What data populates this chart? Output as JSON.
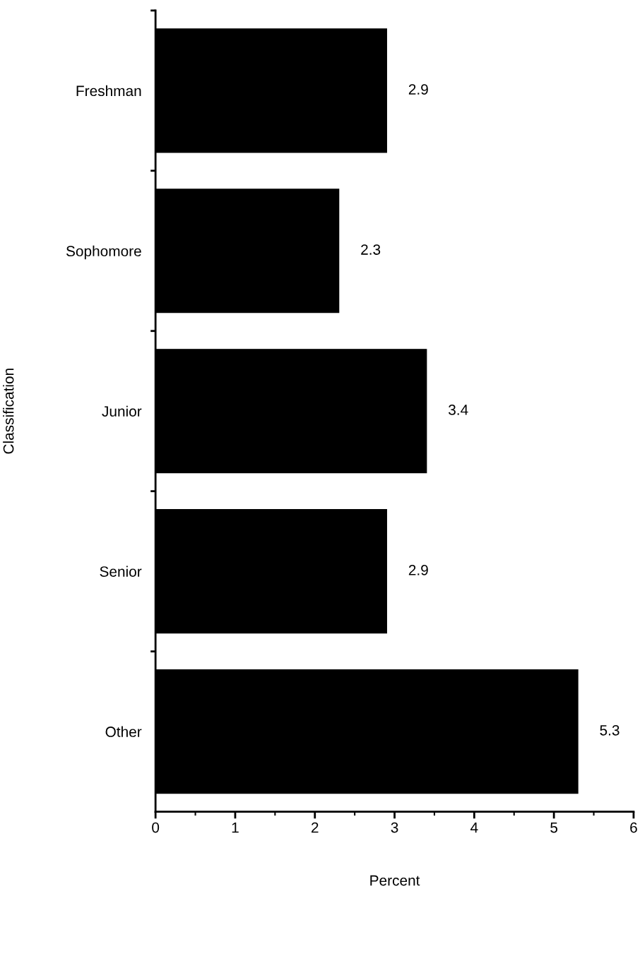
{
  "chart_data": {
    "type": "bar",
    "orientation": "horizontal",
    "xlabel": "Percent",
    "ylabel": "Classification",
    "categories": [
      "Freshman",
      "Sophomore",
      "Junior",
      "Senior",
      "Other"
    ],
    "values": [
      2.9,
      2.3,
      3.4,
      2.9,
      5.3
    ],
    "color": "#000000",
    "xlim": [
      0,
      6
    ],
    "xticks": [
      0,
      1,
      2,
      3,
      4,
      5,
      6
    ],
    "data_labels": true,
    "grid": false,
    "legend": false
  }
}
